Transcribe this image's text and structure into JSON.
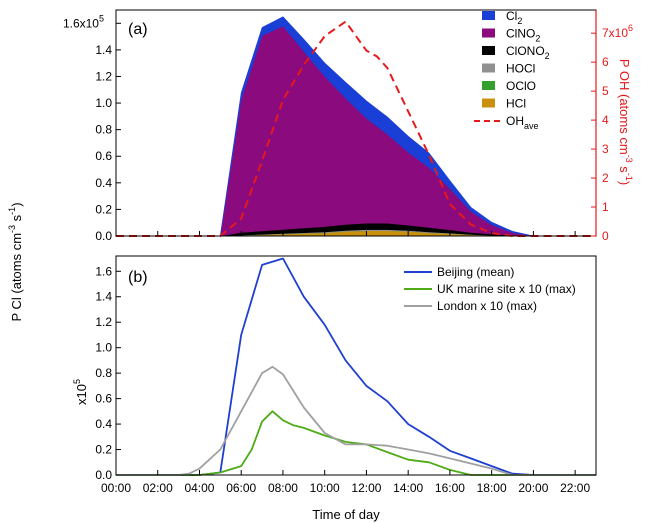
{
  "chart_data": [
    {
      "type": "area",
      "panel_label": "(a)",
      "x_hours": [
        0,
        1,
        2,
        3,
        4,
        5,
        6,
        7,
        8,
        9,
        10,
        11,
        12,
        13,
        14,
        15,
        16,
        17,
        18,
        19,
        20,
        21,
        22,
        23
      ],
      "series": [
        {
          "name": "HCl",
          "color": "#c8900c",
          "values": [
            0,
            0,
            0,
            0,
            0,
            0,
            0.005,
            0.01,
            0.015,
            0.02,
            0.025,
            0.035,
            0.04,
            0.04,
            0.035,
            0.025,
            0.018,
            0.01,
            0.005,
            0.002,
            0,
            0,
            0,
            0
          ]
        },
        {
          "name": "OClO",
          "color": "#33a02c",
          "values": [
            0,
            0,
            0,
            0,
            0,
            0,
            0,
            0,
            0,
            0,
            0,
            0,
            0,
            0,
            0,
            0,
            0,
            0,
            0,
            0,
            0,
            0,
            0,
            0
          ]
        },
        {
          "name": "HOCl",
          "color": "#909090",
          "values": [
            0,
            0,
            0,
            0,
            0,
            0,
            0.002,
            0.003,
            0.004,
            0.005,
            0.006,
            0.007,
            0.008,
            0.008,
            0.006,
            0.005,
            0.004,
            0.002,
            0.001,
            0,
            0,
            0,
            0,
            0
          ]
        },
        {
          "name": "ClONO2",
          "color": "#000000",
          "values": [
            0,
            0,
            0,
            0,
            0,
            0,
            0.02,
            0.025,
            0.03,
            0.035,
            0.04,
            0.045,
            0.048,
            0.048,
            0.04,
            0.035,
            0.025,
            0.015,
            0.008,
            0.003,
            0,
            0,
            0,
            0
          ]
        },
        {
          "name": "ClNO2",
          "color": "#8b0a7e",
          "values": [
            0,
            0,
            0,
            0,
            0,
            0,
            1.0,
            1.47,
            1.53,
            1.33,
            1.13,
            0.95,
            0.79,
            0.67,
            0.55,
            0.45,
            0.31,
            0.16,
            0.07,
            0.02,
            0,
            0,
            0,
            0
          ]
        },
        {
          "name": "Cl2",
          "color": "#1a3fd6",
          "values": [
            0,
            0,
            0,
            0,
            0,
            0,
            0.05,
            0.06,
            0.07,
            0.09,
            0.1,
            0.12,
            0.13,
            0.13,
            0.12,
            0.11,
            0.06,
            0.03,
            0.02,
            0.01,
            0,
            0,
            0,
            0
          ]
        }
      ],
      "oh_series": {
        "name": "OHave",
        "color": "#e41a1c",
        "x_hours": [
          0,
          1,
          2,
          3,
          4,
          5,
          6,
          7,
          8,
          9,
          10,
          11,
          12,
          12.5,
          13,
          14,
          15,
          16,
          17,
          18,
          19,
          20,
          21,
          22,
          23
        ],
        "values": [
          0,
          0,
          0,
          0,
          0,
          0,
          0.6,
          2.6,
          4.7,
          5.9,
          6.9,
          7.4,
          6.4,
          6.2,
          5.8,
          4.3,
          2.8,
          1.1,
          0.4,
          0.1,
          0,
          0,
          0,
          0,
          0
        ]
      },
      "y_left": {
        "ticks": [
          "0.0",
          "0.2",
          "0.4",
          "0.6",
          "0.8",
          "1.0",
          "1.2",
          "1.4",
          "1.6x10"
        ],
        "top_exponent": "5",
        "ylim": [
          0,
          1.7
        ]
      },
      "y_right": {
        "label_parts": {
          "main": "P OH (atoms cm",
          "exp1": "-3",
          "mid": " s",
          "exp2": "-1",
          "end": ")"
        },
        "ticks": [
          "0",
          "1",
          "2",
          "3",
          "4",
          "5",
          "6",
          "7x10"
        ],
        "top_exponent": "6",
        "ylim": [
          0,
          7.8
        ]
      },
      "legend": [
        {
          "base": "Cl",
          "sub": "2",
          "color": "#1a3fd6",
          "kind": "box"
        },
        {
          "base": "ClNO",
          "sub": "2",
          "color": "#8b0a7e",
          "kind": "box"
        },
        {
          "base": "ClONO",
          "sub": "2",
          "color": "#000000",
          "kind": "box"
        },
        {
          "base": "HOCl",
          "sub": "",
          "color": "#909090",
          "kind": "box"
        },
        {
          "base": "OClO",
          "sub": "",
          "color": "#33a02c",
          "kind": "box"
        },
        {
          "base": "HCl",
          "sub": "",
          "color": "#c8900c",
          "kind": "box"
        },
        {
          "base": "OH",
          "sub": "ave",
          "color": "#e41a1c",
          "kind": "dash"
        }
      ],
      "legend_position": "top-right"
    },
    {
      "type": "line",
      "panel_label": "(b)",
      "series": [
        {
          "name": "Beijing (mean)",
          "color": "#1f3fd0",
          "x_hours": [
            0,
            1,
            2,
            3,
            4,
            5,
            6,
            7,
            8,
            9,
            10,
            11,
            12,
            13,
            14,
            15,
            16,
            17,
            18,
            19,
            20,
            21,
            22,
            23
          ],
          "values": [
            0,
            0,
            0,
            0,
            0,
            0.02,
            1.1,
            1.65,
            1.7,
            1.4,
            1.18,
            0.9,
            0.7,
            0.58,
            0.4,
            0.3,
            0.19,
            0.13,
            0.07,
            0.01,
            0,
            0,
            0,
            0
          ]
        },
        {
          "name": "UK marine site x 10 (max)",
          "color": "#4fab18",
          "x_hours": [
            0,
            1,
            2,
            3,
            4,
            5,
            6,
            6.5,
            7,
            7.5,
            8,
            8.5,
            9,
            10,
            11,
            12,
            13,
            14,
            15,
            16,
            17,
            18,
            19,
            20,
            21,
            22,
            23
          ],
          "values": [
            0,
            0,
            0,
            0,
            0,
            0.02,
            0.07,
            0.2,
            0.42,
            0.5,
            0.43,
            0.39,
            0.37,
            0.31,
            0.26,
            0.24,
            0.18,
            0.12,
            0.1,
            0.04,
            0,
            0,
            0,
            0,
            0,
            0,
            0
          ]
        },
        {
          "name": "London x 10 (max)",
          "color": "#a0a0a0",
          "x_hours": [
            0,
            1,
            2,
            3,
            3.5,
            4,
            5,
            6,
            7,
            7.5,
            8,
            9,
            10,
            11,
            12,
            13,
            14,
            15,
            16,
            17,
            18,
            19,
            20,
            21,
            22,
            23
          ],
          "values": [
            0,
            0,
            0,
            0,
            0.01,
            0.05,
            0.2,
            0.5,
            0.8,
            0.85,
            0.79,
            0.53,
            0.33,
            0.24,
            0.24,
            0.23,
            0.2,
            0.17,
            0.13,
            0.09,
            0.05,
            0,
            0,
            0,
            0,
            0
          ]
        }
      ],
      "y_ticks": [
        "0.0",
        "0.2",
        "0.4",
        "0.6",
        "0.8",
        "1.0",
        "1.2",
        "1.4",
        "1.6"
      ],
      "y_multiplier": {
        "base": "x10",
        "exp": "5"
      },
      "ylim": [
        0,
        1.72
      ],
      "legend_position": "top-right"
    }
  ],
  "shared": {
    "x_ticks": [
      "00:00",
      "02:00",
      "04:00",
      "06:00",
      "08:00",
      "10:00",
      "12:00",
      "14:00",
      "16:00",
      "18:00",
      "20:00",
      "22:00"
    ],
    "x_tick_hours": [
      0,
      2,
      4,
      6,
      8,
      10,
      12,
      14,
      16,
      18,
      20,
      22
    ],
    "xlim": [
      0,
      23
    ],
    "xlabel": "Time of day",
    "ylabel_parts": {
      "main": "P Cl (atoms cm",
      "exp1": "-3",
      "mid": " s",
      "exp2": "-1",
      "end": ")"
    }
  }
}
